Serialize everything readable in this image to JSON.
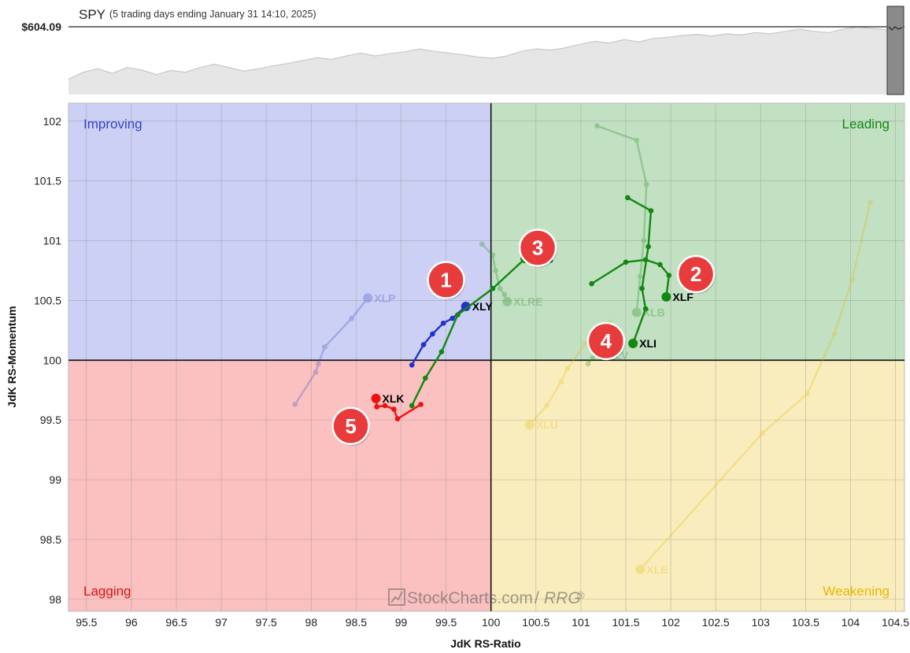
{
  "header": {
    "symbol": "SPY",
    "subtitle": "(5 trading days ending January 31 14:10, 2025)",
    "price_label": "$604.09"
  },
  "watermark": {
    "brand": "StockCharts.com",
    "product": "RRG",
    "reg": "®"
  },
  "colors": {
    "improving": "#cbd0f4",
    "leading": "#c2e0c2",
    "weakening": "#f9edbd",
    "lagging": "#fbc0c0",
    "improving_text": "#3344cc",
    "leading_text": "#118811",
    "weakening_text": "#e8b800",
    "lagging_text": "#dd1111",
    "badge": "#e83b3b"
  },
  "chart_data": {
    "type": "scatter",
    "title": "SPY",
    "xlabel": "JdK RS-Ratio",
    "ylabel": "JdK RS-Momentum",
    "xlim": [
      95.3,
      104.6
    ],
    "ylim": [
      97.9,
      102.15
    ],
    "x_ticks": [
      "95.5",
      "96",
      "96.5",
      "97",
      "97.5",
      "98",
      "98.5",
      "99",
      "99.5",
      "100",
      "100.5",
      "101",
      "101.5",
      "102",
      "102.5",
      "103",
      "103.5",
      "104",
      "104.5"
    ],
    "y_ticks": [
      "98",
      "98.5",
      "99",
      "99.5",
      "100",
      "100.5",
      "101",
      "101.5",
      "102"
    ],
    "center": [
      100,
      100
    ],
    "grid": true,
    "quadrants": [
      {
        "name": "Improving",
        "position": "top-left"
      },
      {
        "name": "Leading",
        "position": "top-right"
      },
      {
        "name": "Weakening",
        "position": "bottom-right"
      },
      {
        "name": "Lagging",
        "position": "bottom-left"
      }
    ],
    "series": [
      {
        "name": "XLY",
        "color": "#2233cc",
        "faded": false,
        "points": [
          [
            99.12,
            99.96
          ],
          [
            99.25,
            100.13
          ],
          [
            99.35,
            100.22
          ],
          [
            99.47,
            100.31
          ],
          [
            99.57,
            100.35
          ],
          [
            99.72,
            100.45
          ]
        ]
      },
      {
        "name": "XLF",
        "color": "#118811",
        "faded": false,
        "points": [
          [
            101.12,
            100.64
          ],
          [
            101.5,
            100.82
          ],
          [
            101.72,
            100.84
          ],
          [
            101.88,
            100.8
          ],
          [
            101.98,
            100.71
          ],
          [
            101.95,
            100.53
          ]
        ]
      },
      {
        "name": "XLC",
        "color": "#118811",
        "faded": false,
        "points": [
          [
            99.12,
            99.62
          ],
          [
            99.27,
            99.85
          ],
          [
            99.45,
            100.07
          ],
          [
            99.63,
            100.38
          ],
          [
            100.02,
            100.6
          ],
          [
            100.38,
            100.85
          ]
        ]
      },
      {
        "name": "XLI",
        "color": "#118811",
        "faded": false,
        "points": [
          [
            101.52,
            101.36
          ],
          [
            101.78,
            101.25
          ],
          [
            101.75,
            100.95
          ],
          [
            101.68,
            100.6
          ],
          [
            101.72,
            100.43
          ],
          [
            101.58,
            100.14
          ]
        ]
      },
      {
        "name": "XLK",
        "color": "#ee1111",
        "faded": false,
        "points": [
          [
            99.22,
            99.63
          ],
          [
            98.96,
            99.51
          ],
          [
            98.92,
            99.59
          ],
          [
            98.82,
            99.62
          ],
          [
            98.73,
            99.61
          ],
          [
            98.72,
            99.68
          ]
        ]
      },
      {
        "name": "XLP",
        "color": "#3344cc",
        "faded": true,
        "points": [
          [
            97.82,
            99.63
          ],
          [
            98.05,
            99.9
          ],
          [
            98.08,
            99.97
          ],
          [
            98.15,
            100.11
          ],
          [
            98.45,
            100.35
          ],
          [
            98.63,
            100.52
          ]
        ]
      },
      {
        "name": "XLRE",
        "color": "#118811",
        "faded": true,
        "points": [
          [
            99.9,
            100.97
          ],
          [
            100.02,
            100.88
          ],
          [
            100.05,
            100.75
          ],
          [
            100.1,
            100.6
          ],
          [
            100.15,
            100.55
          ],
          [
            100.18,
            100.49
          ]
        ]
      },
      {
        "name": "XLB",
        "color": "#118811",
        "faded": true,
        "points": [
          [
            101.18,
            101.96
          ],
          [
            101.62,
            101.84
          ],
          [
            101.73,
            101.47
          ],
          [
            101.7,
            101.0
          ],
          [
            101.66,
            100.7
          ],
          [
            101.62,
            100.4
          ]
        ]
      },
      {
        "name": "XLV",
        "color": "#118811",
        "faded": true,
        "points": [
          [
            101.08,
            99.97
          ],
          [
            101.13,
            100.02
          ],
          [
            101.17,
            100.07
          ],
          [
            101.2,
            100.1
          ],
          [
            101.22,
            100.06
          ],
          [
            101.23,
            100.04
          ]
        ]
      },
      {
        "name": "XLU",
        "color": "#e8b800",
        "faded": true,
        "points": [
          [
            101.32,
            100.32
          ],
          [
            101.05,
            100.14
          ],
          [
            100.85,
            99.93
          ],
          [
            100.78,
            99.82
          ],
          [
            100.62,
            99.62
          ],
          [
            100.43,
            99.46
          ]
        ]
      },
      {
        "name": "XLE",
        "color": "#e8b800",
        "faded": true,
        "points": [
          [
            104.22,
            101.32
          ],
          [
            104.02,
            100.68
          ],
          [
            103.82,
            100.22
          ],
          [
            103.52,
            99.72
          ],
          [
            103.02,
            99.39
          ],
          [
            101.66,
            98.25
          ]
        ]
      }
    ],
    "annotations": [
      {
        "label": "1",
        "x": 99.5,
        "y": 100.67
      },
      {
        "label": "2",
        "x": 102.28,
        "y": 100.72
      },
      {
        "label": "3",
        "x": 100.52,
        "y": 100.94
      },
      {
        "label": "4",
        "x": 101.28,
        "y": 100.16
      },
      {
        "label": "5",
        "x": 98.44,
        "y": 99.45
      }
    ],
    "benchmark_sparkline": [
      0.1,
      0.22,
      0.28,
      0.2,
      0.3,
      0.26,
      0.18,
      0.25,
      0.22,
      0.3,
      0.36,
      0.3,
      0.24,
      0.28,
      0.33,
      0.37,
      0.42,
      0.47,
      0.44,
      0.5,
      0.55,
      0.5,
      0.54,
      0.57,
      0.62,
      0.58,
      0.55,
      0.52,
      0.48,
      0.46,
      0.5,
      0.58,
      0.62,
      0.6,
      0.64,
      0.7,
      0.75,
      0.72,
      0.78,
      0.74,
      0.8,
      0.82,
      0.85,
      0.87,
      0.84,
      0.88,
      0.86,
      0.9,
      0.88,
      0.92,
      0.96,
      0.92,
      0.9,
      0.96,
      1.0,
      0.97,
      0.95
    ]
  }
}
